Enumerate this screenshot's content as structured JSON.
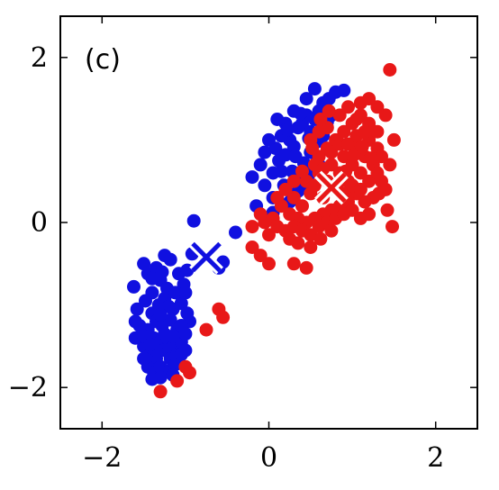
{
  "chart_data": {
    "type": "scatter",
    "panel_label": "(c)",
    "xlim": [
      -2.5,
      2.5
    ],
    "ylim": [
      -2.5,
      2.5
    ],
    "x_ticks": [
      -2,
      0,
      2
    ],
    "x_tick_labels": [
      "−2",
      "0",
      "2"
    ],
    "y_ticks": [
      -2,
      0,
      2
    ],
    "y_tick_labels": [
      "−2",
      "0",
      "2"
    ],
    "grid": false,
    "series": [
      {
        "color": "#1010e0",
        "points": [
          [
            -1.5,
            -0.5
          ],
          [
            -1.45,
            -0.62
          ],
          [
            -1.35,
            -0.55
          ],
          [
            -1.3,
            -0.7
          ],
          [
            -1.22,
            -0.8
          ],
          [
            -1.4,
            -0.85
          ],
          [
            -1.48,
            -0.95
          ],
          [
            -1.32,
            -1.0
          ],
          [
            -1.25,
            -0.92
          ],
          [
            -1.15,
            -1.05
          ],
          [
            -1.05,
            -0.98
          ],
          [
            -1.4,
            -1.1
          ],
          [
            -1.35,
            -1.2
          ],
          [
            -1.28,
            -1.25
          ],
          [
            -1.18,
            -1.18
          ],
          [
            -1.1,
            -1.3
          ],
          [
            -1.45,
            -1.3
          ],
          [
            -1.38,
            -1.4
          ],
          [
            -1.3,
            -1.45
          ],
          [
            -1.22,
            -1.4
          ],
          [
            -1.15,
            -1.5
          ],
          [
            -1.05,
            -1.45
          ],
          [
            -1.5,
            -1.5
          ],
          [
            -1.42,
            -1.6
          ],
          [
            -1.35,
            -1.65
          ],
          [
            -1.25,
            -1.55
          ],
          [
            -1.18,
            -1.65
          ],
          [
            -1.1,
            -1.6
          ],
          [
            -1.0,
            -1.55
          ],
          [
            -0.95,
            -1.2
          ],
          [
            -1.45,
            -1.75
          ],
          [
            -1.38,
            -1.82
          ],
          [
            -1.3,
            -1.75
          ],
          [
            -1.2,
            -1.8
          ],
          [
            -1.12,
            -1.72
          ],
          [
            -1.4,
            -1.9
          ],
          [
            -1.55,
            -1.25
          ],
          [
            -1.6,
            -1.4
          ],
          [
            -1.0,
            -1.35
          ],
          [
            -0.98,
            -1.1
          ],
          [
            -1.2,
            -1.02
          ],
          [
            -1.12,
            -0.85
          ],
          [
            -1.28,
            -0.6
          ],
          [
            -1.02,
            -0.75
          ],
          [
            -1.35,
            -1.55
          ],
          [
            -1.25,
            -1.35
          ],
          [
            -1.05,
            -1.25
          ],
          [
            -1.3,
            -1.12
          ],
          [
            -1.15,
            -1.38
          ],
          [
            -1.08,
            -0.62
          ],
          [
            -0.98,
            -0.58
          ],
          [
            -1.18,
            -0.45
          ],
          [
            -1.25,
            -0.4
          ],
          [
            -0.92,
            -0.38
          ],
          [
            -0.9,
            0.02
          ],
          [
            -0.6,
            -0.55
          ],
          [
            -0.55,
            -0.48
          ],
          [
            -0.4,
            -0.12
          ],
          [
            -1.62,
            -0.78
          ],
          [
            -1.58,
            -1.05
          ],
          [
            -1.5,
            -1.38
          ],
          [
            -1.5,
            -1.65
          ],
          [
            -1.42,
            -1.48
          ],
          [
            -1.4,
            -0.68
          ],
          [
            -1.0,
            -0.85
          ],
          [
            -1.05,
            -1.6
          ],
          [
            -1.15,
            -1.85
          ],
          [
            -1.3,
            -1.88
          ],
          [
            -1.6,
            -1.2
          ],
          [
            -0.2,
            0.55
          ],
          [
            -0.1,
            0.7
          ],
          [
            -0.05,
            0.45
          ],
          [
            0.05,
            0.6
          ],
          [
            0.12,
            0.75
          ],
          [
            0.08,
            0.9
          ],
          [
            0.2,
            0.82
          ],
          [
            0.25,
            1.0
          ],
          [
            0.15,
            1.05
          ],
          [
            0.3,
            0.92
          ],
          [
            0.35,
            1.15
          ],
          [
            0.4,
            1.2
          ],
          [
            0.45,
            1.3
          ],
          [
            0.5,
            1.1
          ],
          [
            0.55,
            1.25
          ],
          [
            0.6,
            1.35
          ],
          [
            0.65,
            1.45
          ],
          [
            0.72,
            1.5
          ],
          [
            0.8,
            1.58
          ],
          [
            0.9,
            1.6
          ],
          [
            0.55,
            1.62
          ],
          [
            0.45,
            1.5
          ],
          [
            0.38,
            1.32
          ],
          [
            0.3,
            1.35
          ],
          [
            0.2,
            1.2
          ],
          [
            0.1,
            1.25
          ],
          [
            0.0,
            1.0
          ],
          [
            -0.05,
            0.85
          ],
          [
            0.05,
            0.3
          ],
          [
            0.18,
            0.45
          ],
          [
            0.28,
            0.62
          ],
          [
            0.35,
            0.55
          ],
          [
            0.42,
            0.72
          ],
          [
            0.5,
            0.85
          ],
          [
            0.58,
            0.98
          ],
          [
            0.65,
            1.05
          ],
          [
            0.7,
            1.22
          ],
          [
            0.35,
            0.38
          ],
          [
            0.25,
            0.25
          ],
          [
            -0.15,
            0.2
          ],
          [
            0.4,
            0.45
          ],
          [
            0.5,
            0.6
          ],
          [
            0.6,
            0.7
          ],
          [
            0.75,
            1.3
          ],
          [
            0.48,
            1.02
          ],
          [
            0.22,
            1.12
          ],
          [
            0.15,
            0.62
          ],
          [
            0.32,
            0.8
          ],
          [
            0.05,
            0.12
          ]
        ]
      },
      {
        "color": "#e81818",
        "points": [
          [
            0.3,
            0.3
          ],
          [
            0.4,
            0.2
          ],
          [
            0.5,
            0.35
          ],
          [
            0.45,
            0.5
          ],
          [
            0.55,
            0.45
          ],
          [
            0.6,
            0.6
          ],
          [
            0.65,
            0.3
          ],
          [
            0.7,
            0.5
          ],
          [
            0.75,
            0.7
          ],
          [
            0.8,
            0.4
          ],
          [
            0.85,
            0.6
          ],
          [
            0.9,
            0.8
          ],
          [
            0.95,
            0.5
          ],
          [
            1.0,
            0.7
          ],
          [
            1.05,
            0.9
          ],
          [
            1.1,
            0.6
          ],
          [
            1.15,
            0.8
          ],
          [
            1.2,
            1.0
          ],
          [
            1.25,
            0.7
          ],
          [
            1.3,
            0.9
          ],
          [
            0.6,
            0.8
          ],
          [
            0.7,
            0.9
          ],
          [
            0.8,
            1.0
          ],
          [
            0.9,
            1.1
          ],
          [
            1.0,
            1.2
          ],
          [
            1.1,
            1.3
          ],
          [
            0.85,
            1.3
          ],
          [
            0.95,
            1.4
          ],
          [
            1.05,
            1.25
          ],
          [
            1.2,
            1.2
          ],
          [
            1.3,
            1.1
          ],
          [
            1.35,
            0.5
          ],
          [
            1.25,
            0.3
          ],
          [
            1.15,
            0.25
          ],
          [
            1.05,
            0.35
          ],
          [
            0.95,
            0.25
          ],
          [
            0.85,
            0.2
          ],
          [
            0.75,
            0.15
          ],
          [
            0.65,
            0.1
          ],
          [
            0.55,
            0.05
          ],
          [
            0.45,
            0.0
          ],
          [
            0.35,
            0.05
          ],
          [
            0.25,
            0.1
          ],
          [
            0.15,
            0.2
          ],
          [
            0.05,
            0.05
          ],
          [
            -0.05,
            0.0
          ],
          [
            0.1,
            -0.05
          ],
          [
            0.2,
            -0.1
          ],
          [
            0.3,
            -0.05
          ],
          [
            0.4,
            -0.1
          ],
          [
            0.5,
            -0.15
          ],
          [
            0.6,
            -0.05
          ],
          [
            0.7,
            0.0
          ],
          [
            0.8,
            0.05
          ],
          [
            0.9,
            0.1
          ],
          [
            1.0,
            0.15
          ],
          [
            1.1,
            0.05
          ],
          [
            1.2,
            0.1
          ],
          [
            1.4,
            0.4
          ],
          [
            1.45,
            0.7
          ],
          [
            1.5,
            1.0
          ],
          [
            1.4,
            1.3
          ],
          [
            1.3,
            1.4
          ],
          [
            1.2,
            1.5
          ],
          [
            1.1,
            1.45
          ],
          [
            1.45,
            1.85
          ],
          [
            0.5,
            1.0
          ],
          [
            0.6,
            1.1
          ],
          [
            0.7,
            1.15
          ],
          [
            0.55,
            0.7
          ],
          [
            0.65,
            0.65
          ],
          [
            0.75,
            0.85
          ],
          [
            0.85,
            0.95
          ],
          [
            0.95,
            0.95
          ],
          [
            1.05,
            1.05
          ],
          [
            1.15,
            1.1
          ],
          [
            0.9,
            0.35
          ],
          [
            1.0,
            0.45
          ],
          [
            1.1,
            0.4
          ],
          [
            1.2,
            0.5
          ],
          [
            1.3,
            0.6
          ],
          [
            1.35,
            0.8
          ],
          [
            0.3,
            0.5
          ],
          [
            0.2,
            0.4
          ],
          [
            0.1,
            0.3
          ],
          [
            -0.1,
            0.1
          ],
          [
            -0.2,
            -0.05
          ],
          [
            0.0,
            -0.15
          ],
          [
            0.25,
            -0.2
          ],
          [
            0.35,
            -0.25
          ],
          [
            0.5,
            -0.3
          ],
          [
            -0.2,
            -0.3
          ],
          [
            -0.1,
            -0.4
          ],
          [
            0.0,
            -0.5
          ],
          [
            0.3,
            -0.5
          ],
          [
            0.45,
            -0.55
          ],
          [
            0.4,
            0.62
          ],
          [
            0.52,
            0.9
          ],
          [
            0.62,
            1.25
          ],
          [
            0.72,
            1.35
          ],
          [
            0.82,
            0.45
          ],
          [
            0.92,
            0.62
          ],
          [
            1.02,
            0.82
          ],
          [
            1.12,
            0.92
          ],
          [
            1.22,
            0.78
          ],
          [
            1.32,
            0.35
          ],
          [
            1.42,
            0.15
          ],
          [
            1.48,
            -0.05
          ],
          [
            0.75,
            -0.1
          ],
          [
            0.62,
            -0.2
          ],
          [
            -0.6,
            -1.05
          ],
          [
            -0.55,
            -1.15
          ],
          [
            -0.75,
            -1.3
          ],
          [
            -1.0,
            -1.75
          ],
          [
            -0.95,
            -1.82
          ],
          [
            -1.1,
            -1.92
          ],
          [
            -1.3,
            -2.05
          ]
        ]
      }
    ],
    "centers": [
      {
        "x": -0.75,
        "y": -0.42,
        "color": "#1010e0",
        "marker": "x"
      },
      {
        "x": 0.75,
        "y": 0.42,
        "color": "#e81818",
        "marker": "x"
      }
    ]
  }
}
